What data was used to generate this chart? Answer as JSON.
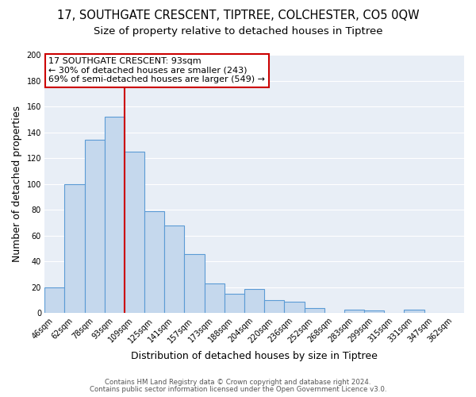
{
  "title": "17, SOUTHGATE CRESCENT, TIPTREE, COLCHESTER, CO5 0QW",
  "subtitle": "Size of property relative to detached houses in Tiptree",
  "xlabel": "Distribution of detached houses by size in Tiptree",
  "ylabel": "Number of detached properties",
  "bar_labels": [
    "46sqm",
    "62sqm",
    "78sqm",
    "93sqm",
    "109sqm",
    "125sqm",
    "141sqm",
    "157sqm",
    "173sqm",
    "188sqm",
    "204sqm",
    "220sqm",
    "236sqm",
    "252sqm",
    "268sqm",
    "283sqm",
    "299sqm",
    "315sqm",
    "331sqm",
    "347sqm",
    "362sqm"
  ],
  "bar_heights": [
    20,
    100,
    134,
    152,
    125,
    79,
    68,
    46,
    23,
    15,
    19,
    10,
    9,
    4,
    0,
    3,
    2,
    0,
    3,
    0,
    0
  ],
  "bar_color": "#c5d8ed",
  "bar_edge_color": "#5b9bd5",
  "bar_edge_width": 0.8,
  "vline_x_idx": 3,
  "vline_color": "#cc0000",
  "annotation_title": "17 SOUTHGATE CRESCENT: 93sqm",
  "annotation_line1": "← 30% of detached houses are smaller (243)",
  "annotation_line2": "69% of semi-detached houses are larger (549) →",
  "annotation_box_facecolor": "#ffffff",
  "annotation_box_edgecolor": "#cc0000",
  "ylim": [
    0,
    200
  ],
  "yticks": [
    0,
    20,
    40,
    60,
    80,
    100,
    120,
    140,
    160,
    180,
    200
  ],
  "footnote1": "Contains HM Land Registry data © Crown copyright and database right 2024.",
  "footnote2": "Contains public sector information licensed under the Open Government Licence v3.0.",
  "fig_bg_color": "#ffffff",
  "plot_bg_color": "#e8eef6",
  "grid_color": "#ffffff",
  "title_fontsize": 10.5,
  "subtitle_fontsize": 9.5,
  "axis_label_fontsize": 9,
  "tick_fontsize": 7,
  "annotation_fontsize": 8,
  "footnote_fontsize": 6.2
}
